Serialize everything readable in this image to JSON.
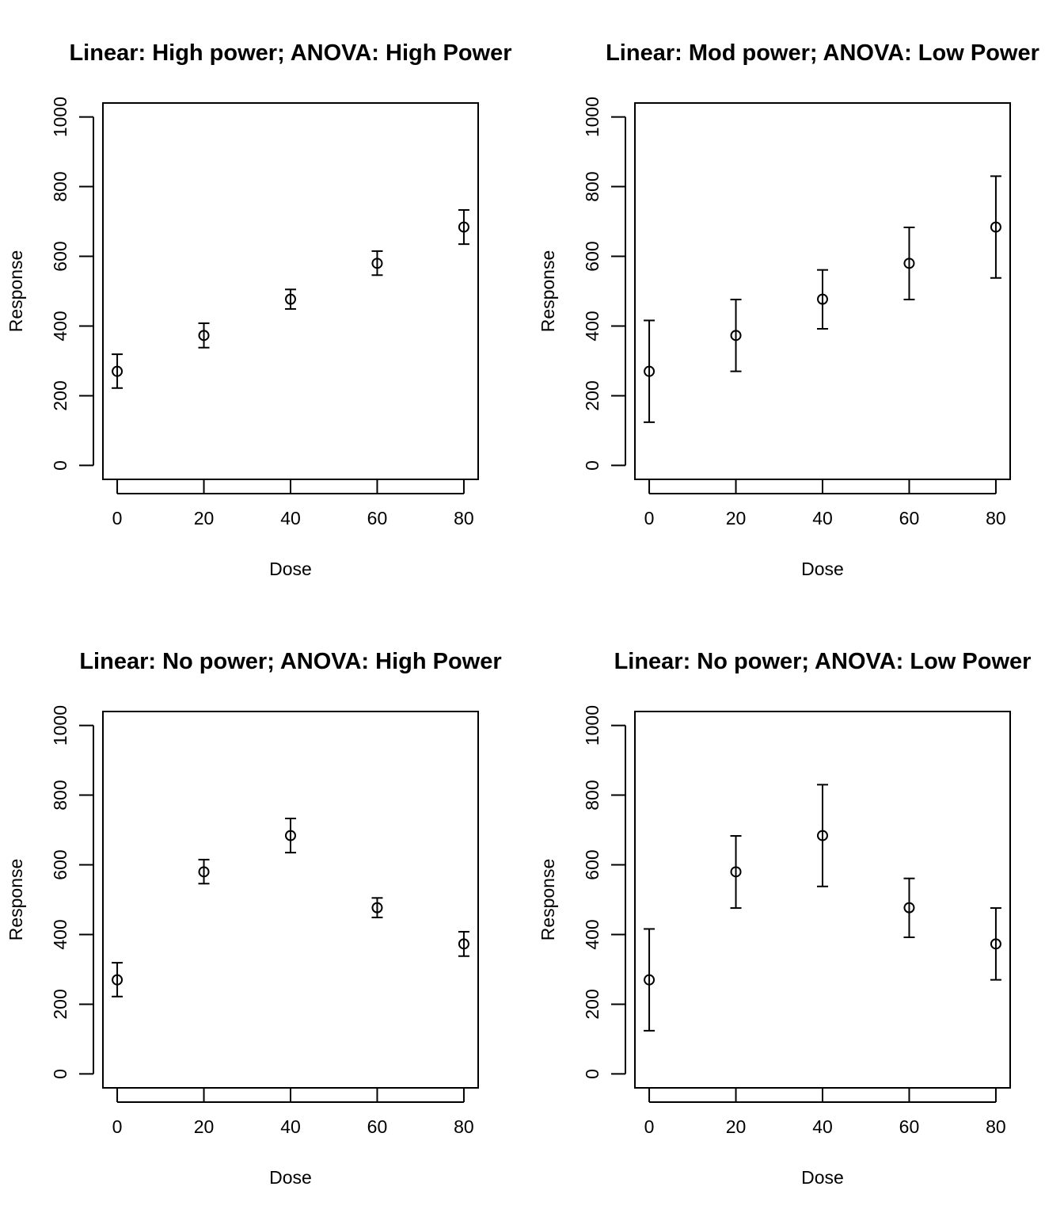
{
  "chart_data": [
    {
      "type": "scatter",
      "title": "Linear: High power; ANOVA: High Power",
      "xlabel": "Dose",
      "ylabel": "Response",
      "x": [
        0,
        20,
        40,
        60,
        80
      ],
      "y": [
        270,
        373,
        477,
        580,
        684
      ],
      "err_low": [
        222,
        338,
        449,
        546,
        635
      ],
      "err_high": [
        319,
        408,
        505,
        615,
        733
      ],
      "xticks": [
        "0",
        "20",
        "40",
        "60",
        "80"
      ],
      "yticks": [
        "0",
        "200",
        "400",
        "600",
        "800",
        "1000"
      ],
      "xlim": [
        -3.3,
        83.3
      ],
      "ylim": [
        -40,
        1040
      ]
    },
    {
      "type": "scatter",
      "title": "Linear: Mod power; ANOVA: Low Power",
      "xlabel": "Dose",
      "ylabel": "Response",
      "x": [
        0,
        20,
        40,
        60,
        80
      ],
      "y": [
        270,
        373,
        477,
        580,
        684
      ],
      "err_low": [
        124,
        270,
        392,
        476,
        538
      ],
      "err_high": [
        416,
        476,
        561,
        683,
        830
      ],
      "xticks": [
        "0",
        "20",
        "40",
        "60",
        "80"
      ],
      "yticks": [
        "0",
        "200",
        "400",
        "600",
        "800",
        "1000"
      ],
      "xlim": [
        -3.3,
        83.3
      ],
      "ylim": [
        -40,
        1040
      ]
    },
    {
      "type": "scatter",
      "title": "Linear: No power; ANOVA: High Power",
      "xlabel": "Dose",
      "ylabel": "Response",
      "x": [
        0,
        20,
        40,
        60,
        80
      ],
      "y": [
        270,
        580,
        684,
        477,
        373
      ],
      "err_low": [
        222,
        546,
        635,
        449,
        338
      ],
      "err_high": [
        319,
        615,
        733,
        505,
        408
      ],
      "xticks": [
        "0",
        "20",
        "40",
        "60",
        "80"
      ],
      "yticks": [
        "0",
        "200",
        "400",
        "600",
        "800",
        "1000"
      ],
      "xlim": [
        -3.3,
        83.3
      ],
      "ylim": [
        -40,
        1040
      ]
    },
    {
      "type": "scatter",
      "title": "Linear: No power; ANOVA: Low Power",
      "xlabel": "Dose",
      "ylabel": "Response",
      "x": [
        0,
        20,
        40,
        60,
        80
      ],
      "y": [
        270,
        580,
        684,
        477,
        373
      ],
      "err_low": [
        124,
        476,
        538,
        392,
        270
      ],
      "err_high": [
        416,
        683,
        830,
        561,
        476
      ],
      "xticks": [
        "0",
        "20",
        "40",
        "60",
        "80"
      ],
      "yticks": [
        "0",
        "200",
        "400",
        "600",
        "800",
        "1000"
      ],
      "xlim": [
        -3.3,
        83.3
      ],
      "ylim": [
        -40,
        1040
      ]
    }
  ]
}
